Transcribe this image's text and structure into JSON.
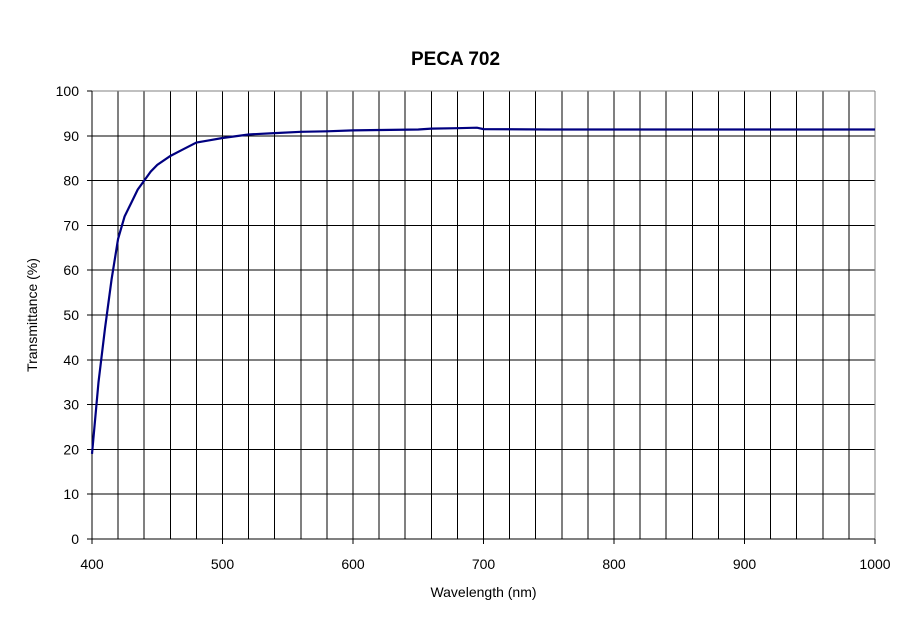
{
  "chart_data": {
    "type": "line",
    "title": "PECA 702",
    "xlabel": "Wavelength (nm)",
    "ylabel": "Transmittance (%)",
    "xlim": [
      400,
      1000
    ],
    "ylim": [
      0,
      100
    ],
    "x_ticks": [
      400,
      500,
      600,
      700,
      800,
      900,
      1000
    ],
    "y_ticks": [
      0,
      10,
      20,
      30,
      40,
      50,
      60,
      70,
      80,
      90,
      100
    ],
    "x_minor_gridline_step": 20,
    "grid": true,
    "legend": null,
    "series": [
      {
        "name": "PECA 702",
        "color": "#000080",
        "x": [
          400,
          405,
          410,
          415,
          420,
          425,
          430,
          435,
          440,
          445,
          450,
          460,
          470,
          480,
          490,
          500,
          520,
          540,
          560,
          580,
          600,
          620,
          650,
          660,
          680,
          695,
          700,
          750,
          800,
          900,
          1000
        ],
        "y": [
          19,
          35,
          47,
          58,
          67,
          72,
          75,
          78,
          80,
          82,
          83.5,
          85.5,
          87,
          88.5,
          89,
          89.5,
          90.3,
          90.6,
          90.9,
          91,
          91.2,
          91.3,
          91.4,
          91.6,
          91.7,
          91.8,
          91.5,
          91.4,
          91.4,
          91.4,
          91.4
        ]
      }
    ]
  },
  "colors": {
    "line": "#000080",
    "grid": "#000000",
    "border": "#808080",
    "background": "#ffffff"
  }
}
